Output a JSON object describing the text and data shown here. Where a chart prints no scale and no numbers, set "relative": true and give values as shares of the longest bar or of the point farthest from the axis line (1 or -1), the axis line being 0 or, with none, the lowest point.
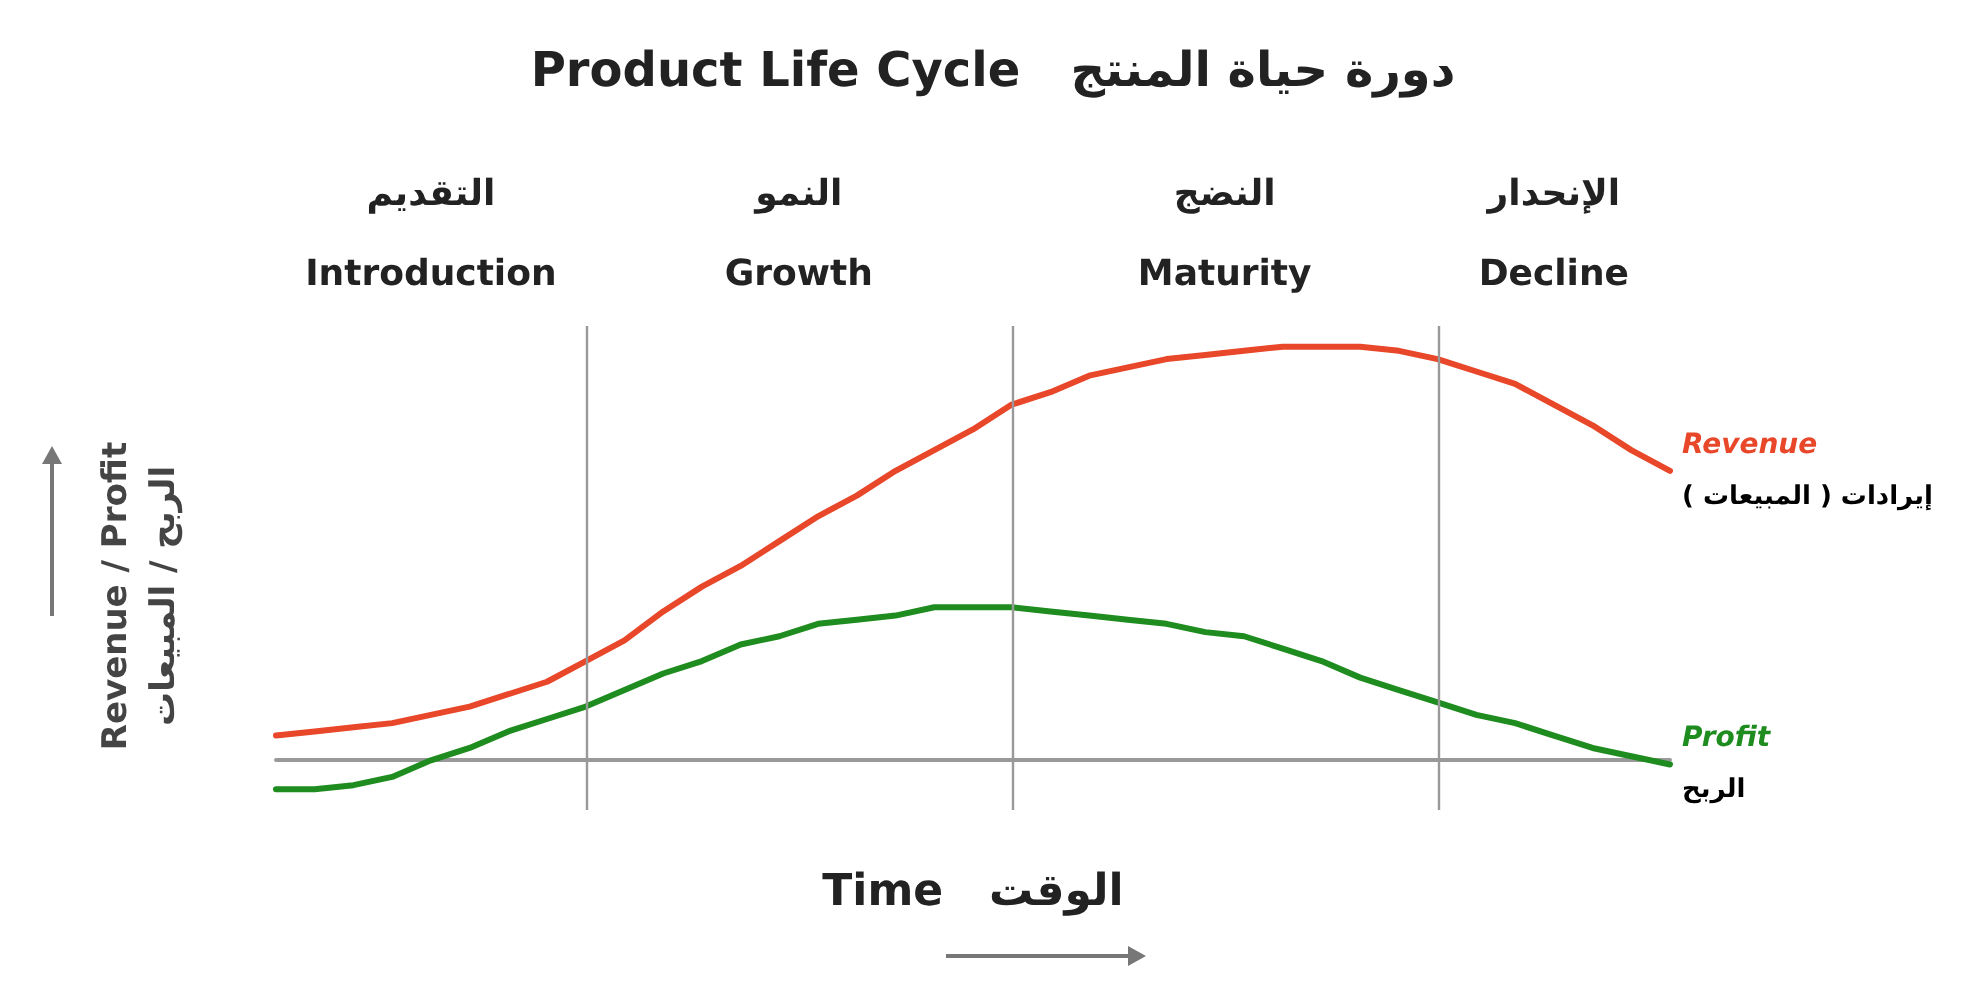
{
  "chart_data": {
    "type": "line",
    "title": "Product Life Cycle   دورة حياة المنتج",
    "xlabel": "Time   الوقت",
    "ylabel": "Revenue / Profit\nالربح / المبيعات",
    "relative": true,
    "grid": "x",
    "legend": false,
    "marker": "none",
    "line_style": "solid",
    "categories": [
      null,
      null,
      null,
      null,
      null,
      null,
      null,
      null,
      null,
      null,
      null,
      null,
      null,
      null,
      null,
      null,
      null,
      null,
      null,
      null,
      null,
      null,
      null,
      null,
      null,
      null,
      null,
      null,
      null,
      null,
      null,
      null,
      null,
      null,
      null,
      null,
      null
    ],
    "series": [
      {
        "name": "Revenue",
        "color": "#e8472a",
        "values": [
          0.06,
          0.07,
          0.08,
          0.09,
          0.11,
          0.13,
          0.16,
          0.19,
          0.24,
          0.29,
          0.36,
          0.42,
          0.47,
          0.53,
          0.59,
          0.64,
          0.7,
          0.75,
          0.8,
          0.86,
          0.89,
          0.93,
          0.95,
          0.97,
          0.98,
          0.99,
          1.0,
          1.0,
          1.0,
          0.99,
          0.97,
          0.94,
          0.91,
          0.86,
          0.81,
          0.75,
          0.7
        ]
      },
      {
        "name": "Profit",
        "color": "#1e8c1e",
        "values": [
          -0.07,
          -0.07,
          -0.06,
          -0.04,
          0.0,
          0.03,
          0.07,
          0.1,
          0.13,
          0.17,
          0.21,
          0.24,
          0.28,
          0.3,
          0.33,
          0.34,
          0.35,
          0.37,
          0.37,
          0.37,
          0.36,
          0.35,
          0.34,
          0.33,
          0.31,
          0.3,
          0.27,
          0.24,
          0.2,
          0.17,
          0.14,
          0.11,
          0.09,
          0.06,
          0.03,
          0.01,
          -0.01
        ]
      }
    ],
    "annotations": [
      "إيرادات ( المبيعات )",
      "الربح",
      "التقديم\nIntroduction",
      "النمو\nGrowth",
      "النضج\nMaturity",
      "الإنحدار\nDecline"
    ]
  }
}
